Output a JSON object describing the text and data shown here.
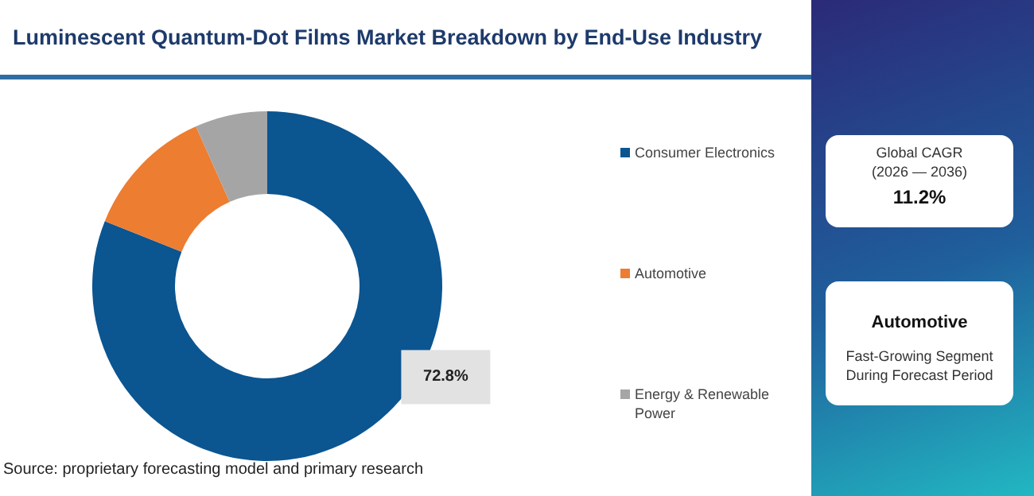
{
  "chart_data": {
    "type": "donut",
    "title": "Luminescent Quantum-Dot Films Market Breakdown by End-Use Industry",
    "categories": [
      "Consumer Electronics",
      "Automotive",
      "Energy & Renewable Power"
    ],
    "values": [
      72.8,
      11,
      6
    ],
    "colors": [
      "#0b5591",
      "#ed7d31",
      "#a5a5a5"
    ],
    "value_labels": [
      "72.8%",
      null,
      null
    ],
    "legend": "right",
    "annotations": [
      "Global CAGR",
      "(2026 — 2036)",
      "11.2%",
      "Automotive",
      "Fast-Growing Segment During Forecast Period",
      "Source: proprietary forecasting model and primary research"
    ]
  }
}
